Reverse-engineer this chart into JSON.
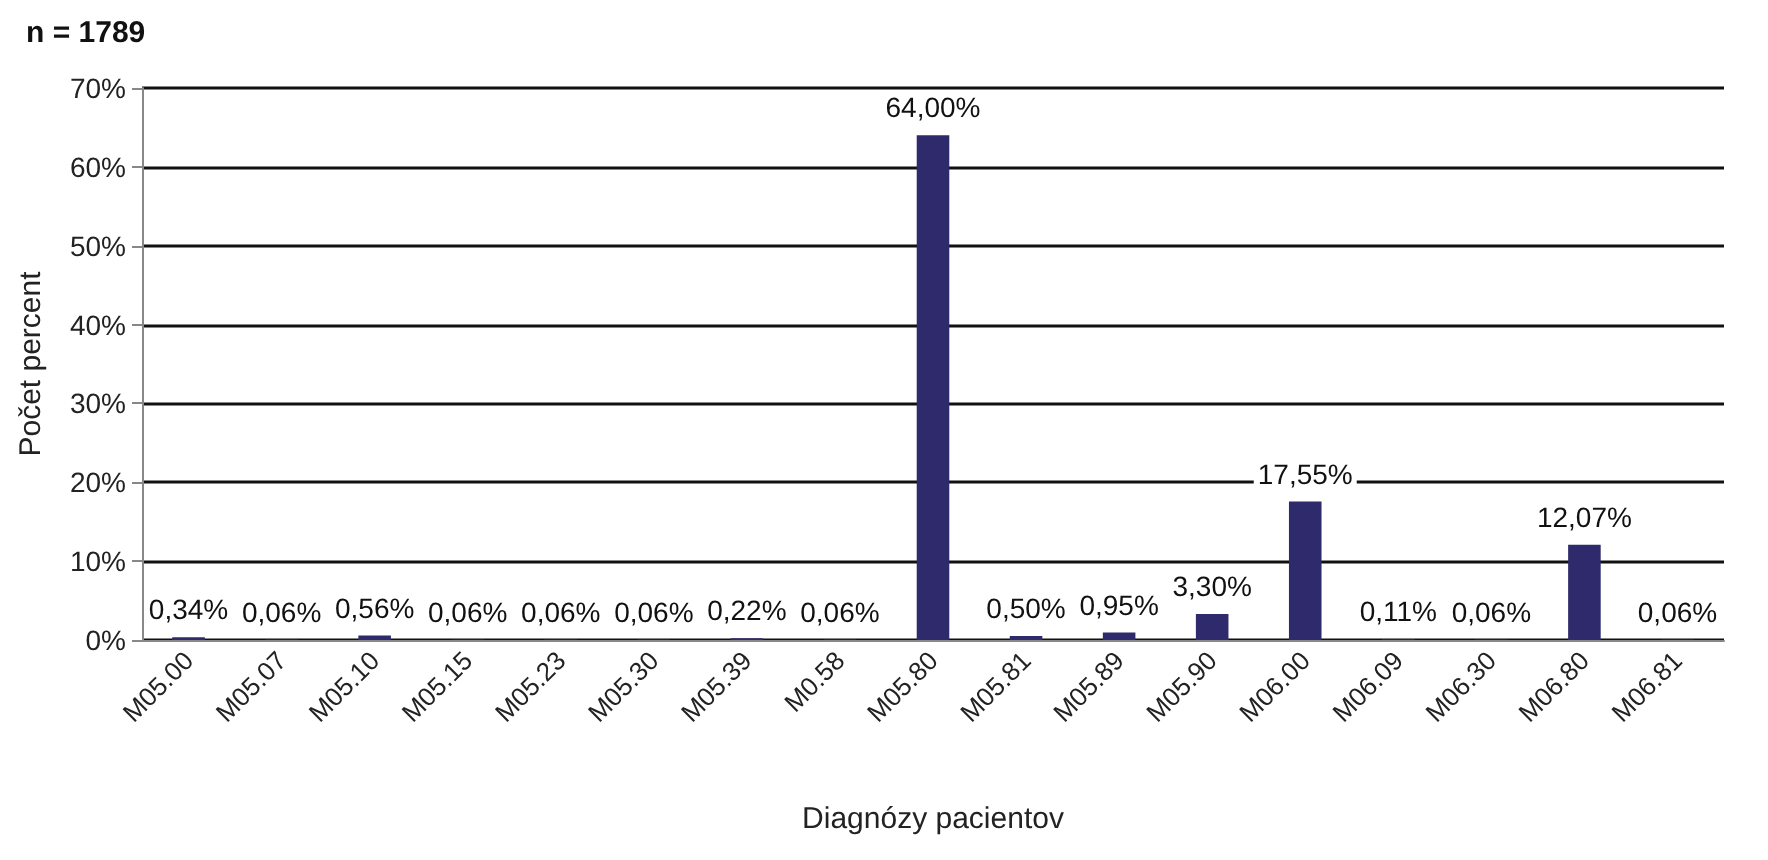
{
  "chart_data": {
    "type": "bar",
    "title": "n = 1789",
    "xlabel": "Diagnózy pacientov",
    "ylabel": "Počet percent",
    "categories": [
      "M05.00",
      "M05.07",
      "M05.10",
      "M05.15",
      "M05.23",
      "M05.30",
      "M05.39",
      "M0.58",
      "M05.80",
      "M05.81",
      "M05.89",
      "M05.90",
      "M06.00",
      "M06.09",
      "M06.30",
      "M06.80",
      "M06.81"
    ],
    "values": [
      0.34,
      0.06,
      0.56,
      0.06,
      0.06,
      0.06,
      0.22,
      0.06,
      64.0,
      0.5,
      0.95,
      3.3,
      17.55,
      0.11,
      0.06,
      12.07,
      0.06
    ],
    "value_labels": [
      "0,34%",
      "0,06%",
      "0,56%",
      "0,06%",
      "0,06%",
      "0,06%",
      "0,22%",
      "0,06%",
      "64,00%",
      "0,50%",
      "0,95%",
      "3,30%",
      "17,55%",
      "0,11%",
      "0,06%",
      "12,07%",
      "0,06%"
    ],
    "color": "#2e2a6b",
    "ylim": [
      0,
      70
    ],
    "yticks": [
      {
        "value": 0,
        "label": "0%"
      },
      {
        "value": 10,
        "label": "10%"
      },
      {
        "value": 20,
        "label": "20%"
      },
      {
        "value": 30,
        "label": "30%"
      },
      {
        "value": 40,
        "label": "40%"
      },
      {
        "value": 50,
        "label": "50%"
      },
      {
        "value": 60,
        "label": "60%"
      },
      {
        "value": 70,
        "label": "70%"
      }
    ],
    "grid": "y"
  }
}
